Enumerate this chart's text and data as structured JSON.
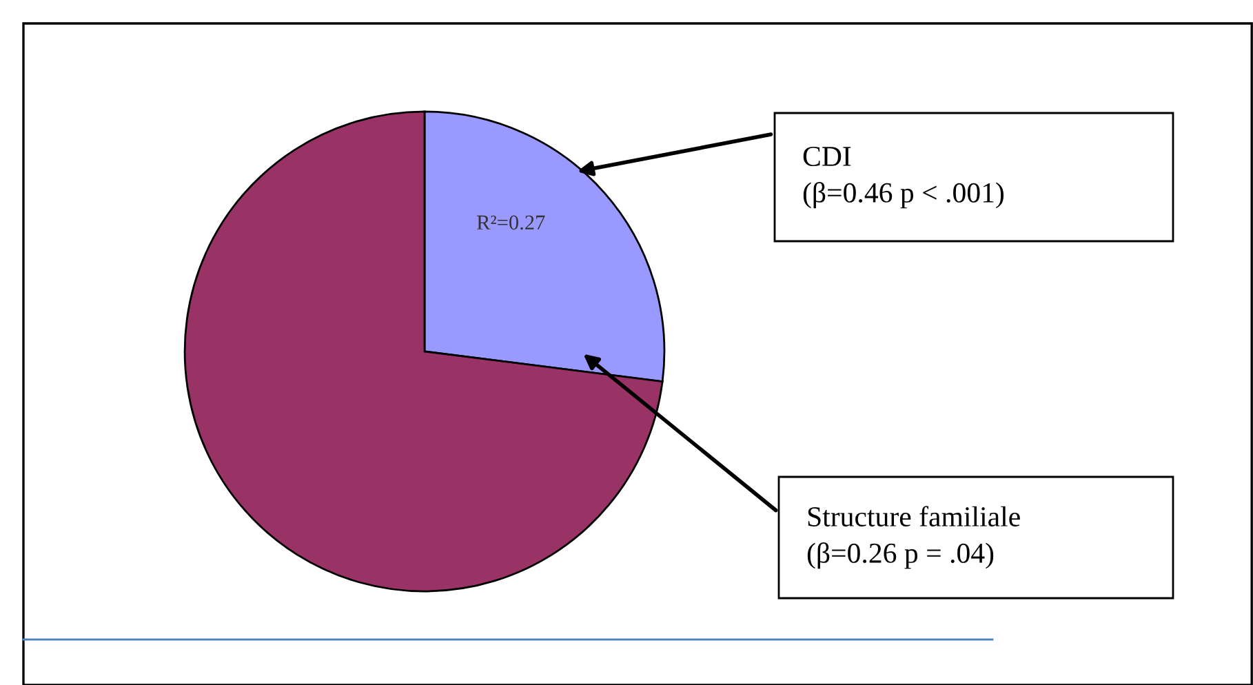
{
  "chart_data": {
    "type": "pie",
    "categories": [
      null,
      null
    ],
    "values": [
      27,
      73
    ],
    "colors": [
      "#9999ff",
      "#993366"
    ],
    "annotations": [
      "R²=0.27",
      "CDI\n(β=0.46 p < .001)",
      "Structure familiale\n(β=0.26 p = .04)"
    ]
  }
}
